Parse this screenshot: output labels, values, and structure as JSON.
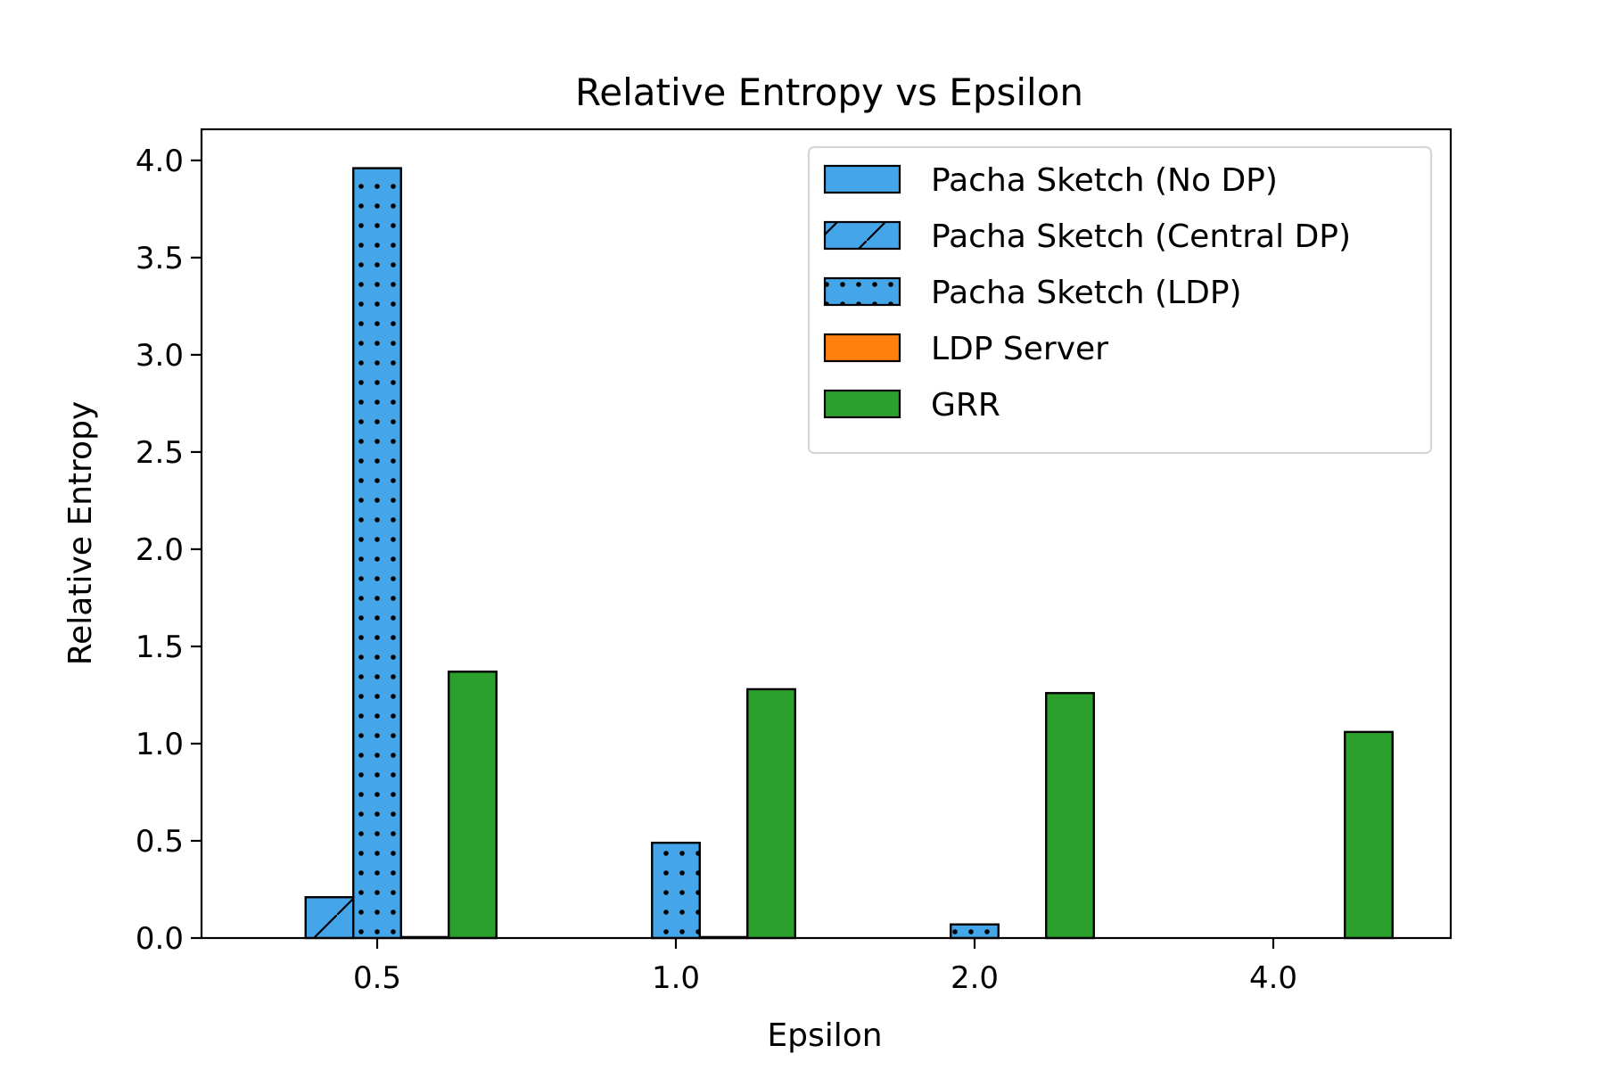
{
  "chart_data": {
    "type": "bar",
    "title": "Relative Entropy vs Epsilon",
    "xlabel": "Epsilon",
    "ylabel": "Relative Entropy",
    "categories": [
      "0.5",
      "1.0",
      "2.0",
      "4.0"
    ],
    "ylim": [
      0,
      4.16
    ],
    "yticks": [
      "0.0",
      "0.5",
      "1.0",
      "1.5",
      "2.0",
      "2.5",
      "3.0",
      "3.5",
      "4.0"
    ],
    "legend_position": "top-right",
    "grid": false,
    "series": [
      {
        "name": "Pacha Sketch (No DP)",
        "values": [
          0.0,
          0.0,
          0.0,
          0.0
        ],
        "color": "#45a5e9",
        "pattern": "none"
      },
      {
        "name": "Pacha Sketch (Central DP)",
        "values": [
          0.21,
          0.0,
          0.0,
          0.0
        ],
        "color": "#45a5e9",
        "pattern": "diagonal"
      },
      {
        "name": "Pacha Sketch (LDP)",
        "values": [
          3.96,
          0.49,
          0.07,
          0.0
        ],
        "color": "#45a5e9",
        "pattern": "dots"
      },
      {
        "name": "LDP Server",
        "values": [
          0.005,
          0.005,
          0.0,
          0.0
        ],
        "color": "#ff7f0e",
        "pattern": "none"
      },
      {
        "name": "GRR",
        "values": [
          1.37,
          1.28,
          1.26,
          1.06
        ],
        "color": "#2ca02c",
        "pattern": "none"
      }
    ]
  }
}
